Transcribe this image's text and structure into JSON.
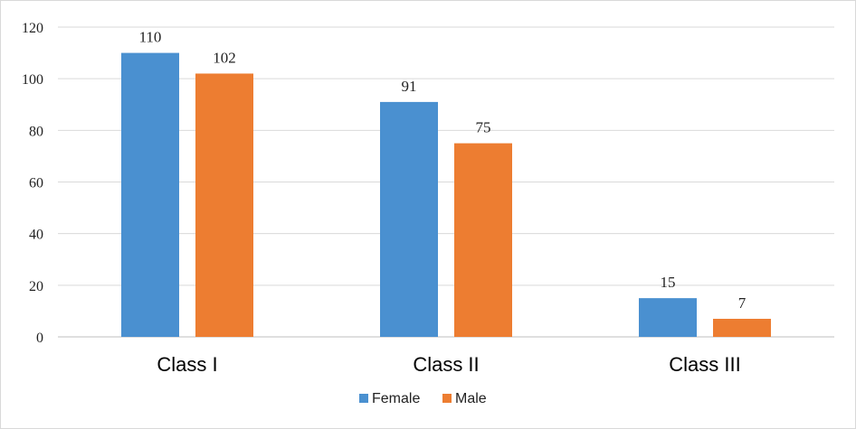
{
  "chart_data": {
    "type": "bar",
    "categories": [
      "Class I",
      "Class II",
      "Class III"
    ],
    "series": [
      {
        "name": "Female",
        "values": [
          110,
          91,
          15
        ],
        "color": "#4a90d0"
      },
      {
        "name": "Male",
        "values": [
          102,
          75,
          7
        ],
        "color": "#ed7d31"
      }
    ],
    "ylim": [
      0,
      120
    ],
    "yticks": [
      0,
      20,
      40,
      60,
      80,
      100,
      120
    ],
    "grid": true,
    "legend": "bottom",
    "data_labels": true
  }
}
